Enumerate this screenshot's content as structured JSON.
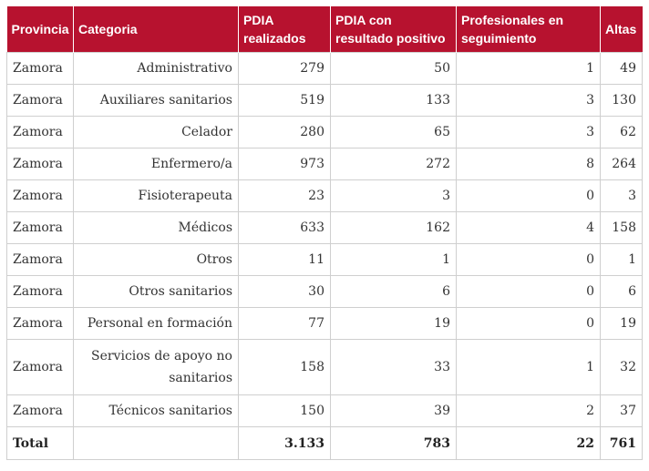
{
  "headers": {
    "provincia": "Provincia",
    "categoria": "Categoria",
    "pdia_realizados": "PDIA realizados",
    "pdia_positivo": "PDIA con resultado positivo",
    "profesionales": "Profesionales en seguimiento",
    "altas": "Altas"
  },
  "rows": [
    {
      "provincia": "Zamora",
      "categoria": "Administrativo",
      "realizados": "279",
      "positivo": "50",
      "seguimiento": "1",
      "altas": "49"
    },
    {
      "provincia": "Zamora",
      "categoria": "Auxiliares sanitarios",
      "realizados": "519",
      "positivo": "133",
      "seguimiento": "3",
      "altas": "130"
    },
    {
      "provincia": "Zamora",
      "categoria": "Celador",
      "realizados": "280",
      "positivo": "65",
      "seguimiento": "3",
      "altas": "62"
    },
    {
      "provincia": "Zamora",
      "categoria": "Enfermero/a",
      "realizados": "973",
      "positivo": "272",
      "seguimiento": "8",
      "altas": "264"
    },
    {
      "provincia": "Zamora",
      "categoria": "Fisioterapeuta",
      "realizados": "23",
      "positivo": "3",
      "seguimiento": "0",
      "altas": "3"
    },
    {
      "provincia": "Zamora",
      "categoria": "Médicos",
      "realizados": "633",
      "positivo": "162",
      "seguimiento": "4",
      "altas": "158"
    },
    {
      "provincia": "Zamora",
      "categoria": "Otros",
      "realizados": "11",
      "positivo": "1",
      "seguimiento": "0",
      "altas": "1"
    },
    {
      "provincia": "Zamora",
      "categoria": "Otros sanitarios",
      "realizados": "30",
      "positivo": "6",
      "seguimiento": "0",
      "altas": "6"
    },
    {
      "provincia": "Zamora",
      "categoria": "Personal en formación",
      "realizados": "77",
      "positivo": "19",
      "seguimiento": "0",
      "altas": "19"
    },
    {
      "provincia": "Zamora",
      "categoria": "Servicios de apoyo no sanitarios",
      "realizados": "158",
      "positivo": "33",
      "seguimiento": "1",
      "altas": "32"
    },
    {
      "provincia": "Zamora",
      "categoria": "Técnicos sanitarios",
      "realizados": "150",
      "positivo": "39",
      "seguimiento": "2",
      "altas": "37"
    }
  ],
  "total": {
    "label": "Total",
    "categoria": "",
    "realizados": "3.133",
    "positivo": "783",
    "seguimiento": "22",
    "altas": "761"
  },
  "colors": {
    "header_bg": "#b7122f",
    "header_text": "#ffffff",
    "border": "#cfcfcf"
  }
}
